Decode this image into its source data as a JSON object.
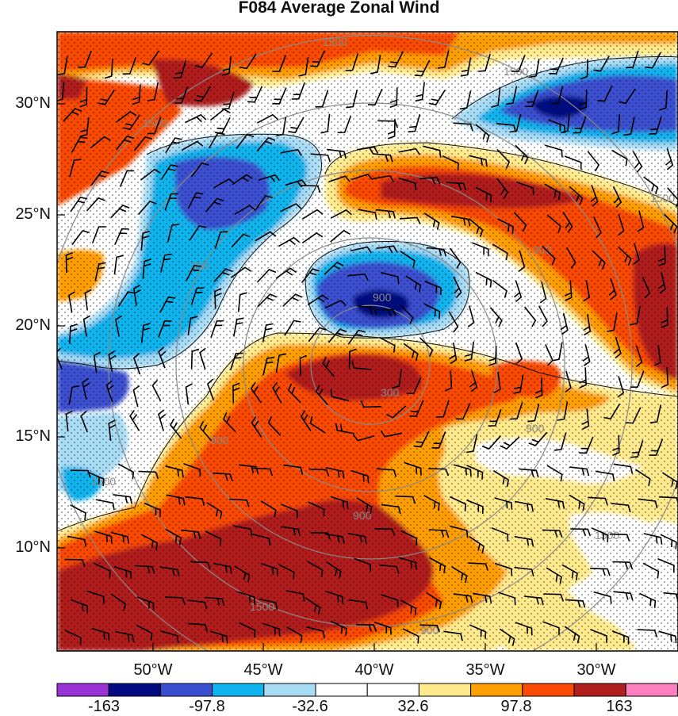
{
  "title": "F084 Average Zonal Wind",
  "lat_labels": [
    "30°N",
    "25°N",
    "20°N",
    "15°N",
    "10°N"
  ],
  "lon_labels": [
    "50°W",
    "45°W",
    "40°W",
    "35°W",
    "30°W"
  ],
  "colorbar": {
    "colors": [
      "#9a33d6",
      "#050a82",
      "#3a4fd0",
      "#10b4ee",
      "#a8dcf5",
      "#ffffff",
      "#ffffff",
      "#ffeb8e",
      "#ff9e00",
      "#fa4a05",
      "#b01e1e",
      "#ff80c0"
    ],
    "labels": [
      "-163",
      "-97.8",
      "-32.6",
      "32.6",
      "97.8",
      "163"
    ]
  },
  "range_rings": {
    "labels": [
      "300",
      "900",
      "1500",
      "1500",
      "1500",
      "1500",
      "1500",
      "900",
      "900",
      "900",
      "300",
      "900",
      "900",
      "1500",
      "1500"
    ]
  }
}
